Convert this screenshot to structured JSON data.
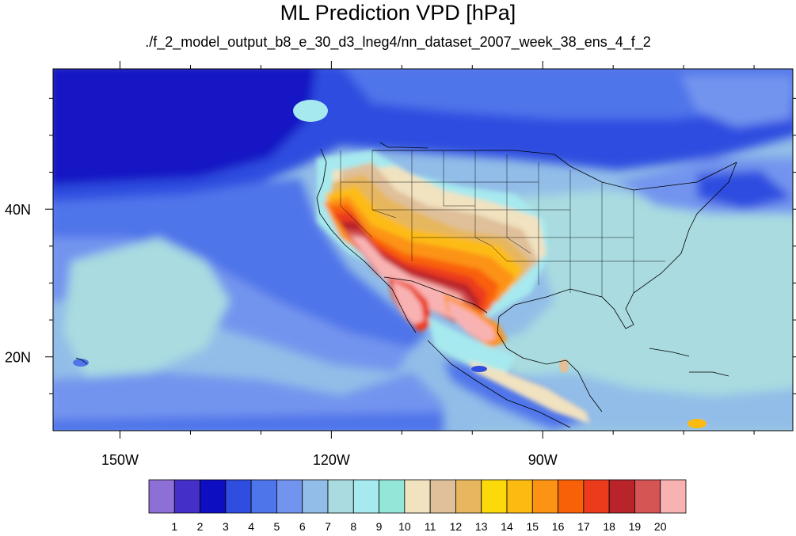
{
  "title": "ML Prediction VPD [hPa]",
  "subtitle": "./f_2_model_output_b8_e_30_d3_lneg4/nn_dataset_2007_week_38_ens_4_f_2",
  "map": {
    "projection": "cylindrical-equidistant",
    "region": "North America and eastern Pacific",
    "lon_range": [
      -159.5,
      -54.5
    ],
    "lat_range": [
      10,
      59
    ],
    "lon_ticks": [
      {
        "value": -150,
        "label": "150W"
      },
      {
        "value": -120,
        "label": "120W"
      },
      {
        "value": -90,
        "label": "90W"
      }
    ],
    "lat_ticks": [
      {
        "value": 40,
        "label": "40N"
      },
      {
        "value": 20,
        "label": "20N"
      }
    ],
    "variable": "VPD",
    "units": "hPa",
    "high_value_regions": [
      "California Central Valley",
      "Desert Southwest",
      "Texas / southern Great Plains",
      "northern Mexico"
    ]
  },
  "colorbar": {
    "labels": [
      "1",
      "2",
      "3",
      "4",
      "5",
      "6",
      "7",
      "8",
      "9",
      "10",
      "11",
      "12",
      "13",
      "14",
      "15",
      "16",
      "17",
      "18",
      "19",
      "20"
    ],
    "colors": [
      "#8e6fd6",
      "#4430c8",
      "#0d0dc2",
      "#2f4ee0",
      "#4f75ea",
      "#7394ee",
      "#92bde8",
      "#a9dbe0",
      "#a6e9ee",
      "#93e7d8",
      "#f1e2c0",
      "#dfc09a",
      "#e6b75e",
      "#fcd90a",
      "#fdbb12",
      "#fc9314",
      "#f96108",
      "#eb3a1c",
      "#b8242a",
      "#d45554",
      "#f9b2b2"
    ]
  }
}
